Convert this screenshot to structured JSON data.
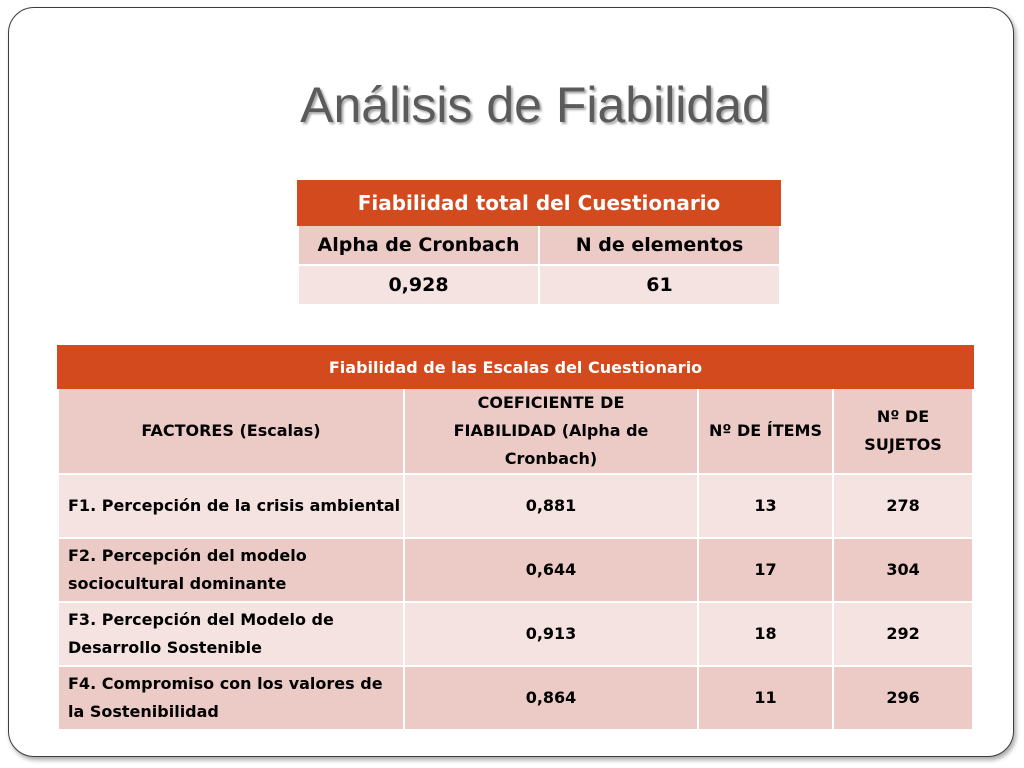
{
  "slide": {
    "title": "Análisis de Fiabilidad"
  },
  "table_total": {
    "caption": "Fiabilidad total del Cuestionario",
    "headers": [
      "Alpha de Cronbach",
      "N de elementos"
    ],
    "values": [
      "0,928",
      "61"
    ]
  },
  "table_scales": {
    "caption": "Fiabilidad de las Escalas del Cuestionario",
    "headers": [
      "FACTORES (Escalas)",
      "COEFICIENTE DE FIABILIDAD (Alpha de Cronbach)",
      "Nº DE ÍTEMS",
      "Nº DE SUJETOS"
    ],
    "rows": [
      {
        "factor": "F1. Percepción de la crisis ambiental",
        "alpha": "0,881",
        "items": "13",
        "subjects": "278"
      },
      {
        "factor": "F2. Percepción del modelo sociocultural dominante",
        "alpha": "0,644",
        "items": "17",
        "subjects": "304"
      },
      {
        "factor": "F3. Percepción del Modelo de Desarrollo Sostenible",
        "alpha": "0,913",
        "items": "18",
        "subjects": "292"
      },
      {
        "factor": "F4. Compromiso con los valores de la Sostenibilidad",
        "alpha": "0,864",
        "items": "11",
        "subjects": "296"
      }
    ]
  },
  "colors": {
    "header_orange": "#d24a1e",
    "row_dark": "#eccac6",
    "row_light": "#f5e3e1",
    "title_gray": "#5b5b5b"
  }
}
